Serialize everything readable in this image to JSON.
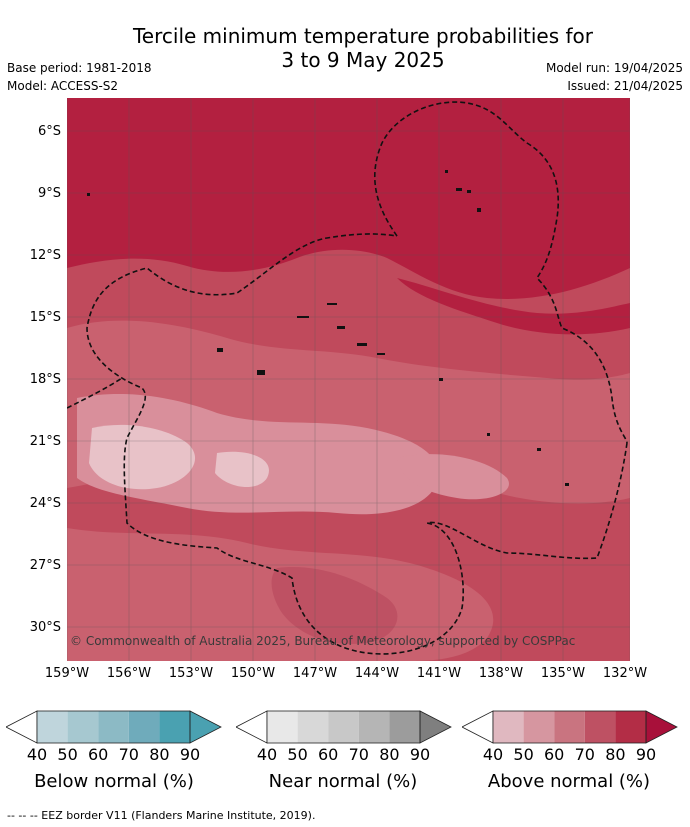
{
  "title_line1": "Tercile minimum temperature probabilities for",
  "title_line2": "3 to 9 May 2025",
  "base_period": "Base period: 1981-2018",
  "model": "Model: ACCESS-S2",
  "model_run": "Model run: 19/04/2025",
  "issued": "Issued: 21/04/2025",
  "copyright": "© Commonwealth of Australia 2025, Bureau of Meteorology, supported by COSPPac",
  "lat_labels": [
    "6°S",
    "9°S",
    "12°S",
    "15°S",
    "18°S",
    "21°S",
    "24°S",
    "27°S",
    "30°S"
  ],
  "lon_labels": [
    "159°W",
    "156°W",
    "153°W",
    "150°W",
    "147°W",
    "144°W",
    "141°W",
    "138°W",
    "135°W",
    "132°W"
  ],
  "colorbars": [
    {
      "label": "Below normal (%)",
      "ticks": [
        "40",
        "50",
        "60",
        "70",
        "80",
        "90"
      ],
      "colors": [
        "#bfd5dc",
        "#a6c8d0",
        "#8cbac5",
        "#6fabbb",
        "#4aa1b1"
      ]
    },
    {
      "label": "Near normal (%)",
      "ticks": [
        "40",
        "50",
        "60",
        "70",
        "80",
        "90"
      ],
      "colors": [
        "#e8e8e8",
        "#d8d8d8",
        "#c8c8c8",
        "#b5b5b5",
        "#9c9c9c"
      ]
    },
    {
      "label": "Above normal (%)",
      "ticks": [
        "40",
        "50",
        "60",
        "70",
        "80",
        "90"
      ],
      "colors": [
        "#e0b8c0",
        "#d696a0",
        "#c97480",
        "#be5163",
        "#b32d46"
      ]
    }
  ],
  "footer": "--  --  -- EEZ border V11 (Flanders Marine Institute, 2019)."
}
